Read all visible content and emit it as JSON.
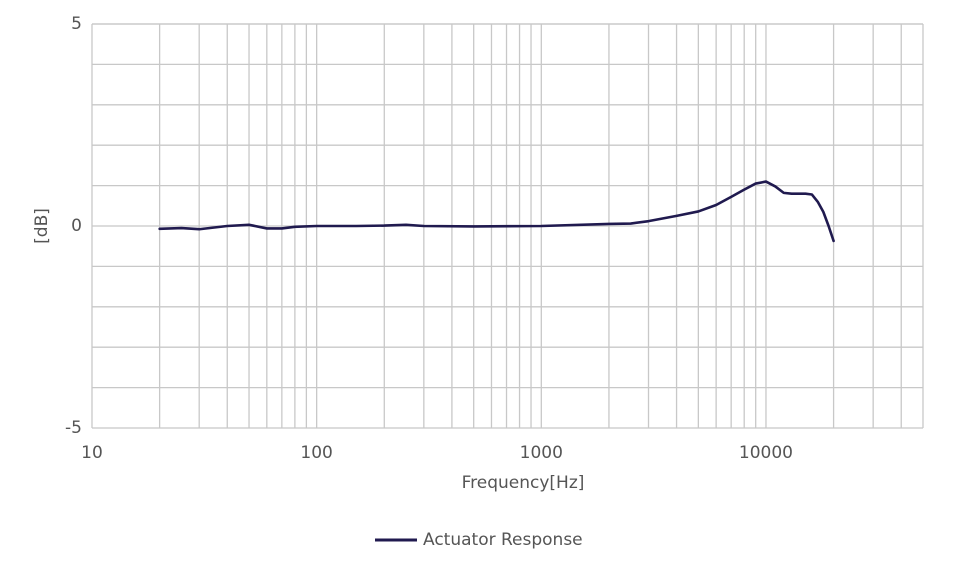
{
  "chart_data": {
    "type": "line",
    "x_label": "Frequency[Hz]",
    "y_label": "[dB]",
    "x": [
      20,
      25,
      30,
      40,
      50,
      60,
      70,
      80,
      100,
      150,
      200,
      250,
      300,
      500,
      1000,
      2000,
      2500,
      3000,
      4000,
      5000,
      6000,
      7000,
      8000,
      9000,
      10000,
      11000,
      12000,
      13000,
      15000,
      16000,
      17000,
      18000,
      19000,
      20000
    ],
    "series": [
      {
        "name": "Actuator Response",
        "color": "#201a4f",
        "values": [
          -0.07,
          -0.05,
          -0.08,
          0.0,
          0.03,
          -0.06,
          -0.06,
          -0.02,
          0.0,
          0.0,
          0.01,
          0.03,
          0.0,
          -0.01,
          0.0,
          0.05,
          0.06,
          0.12,
          0.25,
          0.36,
          0.52,
          0.72,
          0.9,
          1.05,
          1.1,
          0.98,
          0.82,
          0.8,
          0.8,
          0.78,
          0.6,
          0.35,
          0.0,
          -0.37
        ]
      }
    ],
    "xscale": "log",
    "xlim": [
      10,
      50000
    ],
    "xticks": [
      10,
      100,
      1000,
      10000
    ],
    "ylim": [
      -5,
      5
    ],
    "yticks": [
      -5,
      0,
      5
    ],
    "yminorticks": [
      -4,
      -3,
      -2,
      -1,
      1,
      2,
      3,
      4
    ],
    "grid": true,
    "legend": "bottom"
  }
}
